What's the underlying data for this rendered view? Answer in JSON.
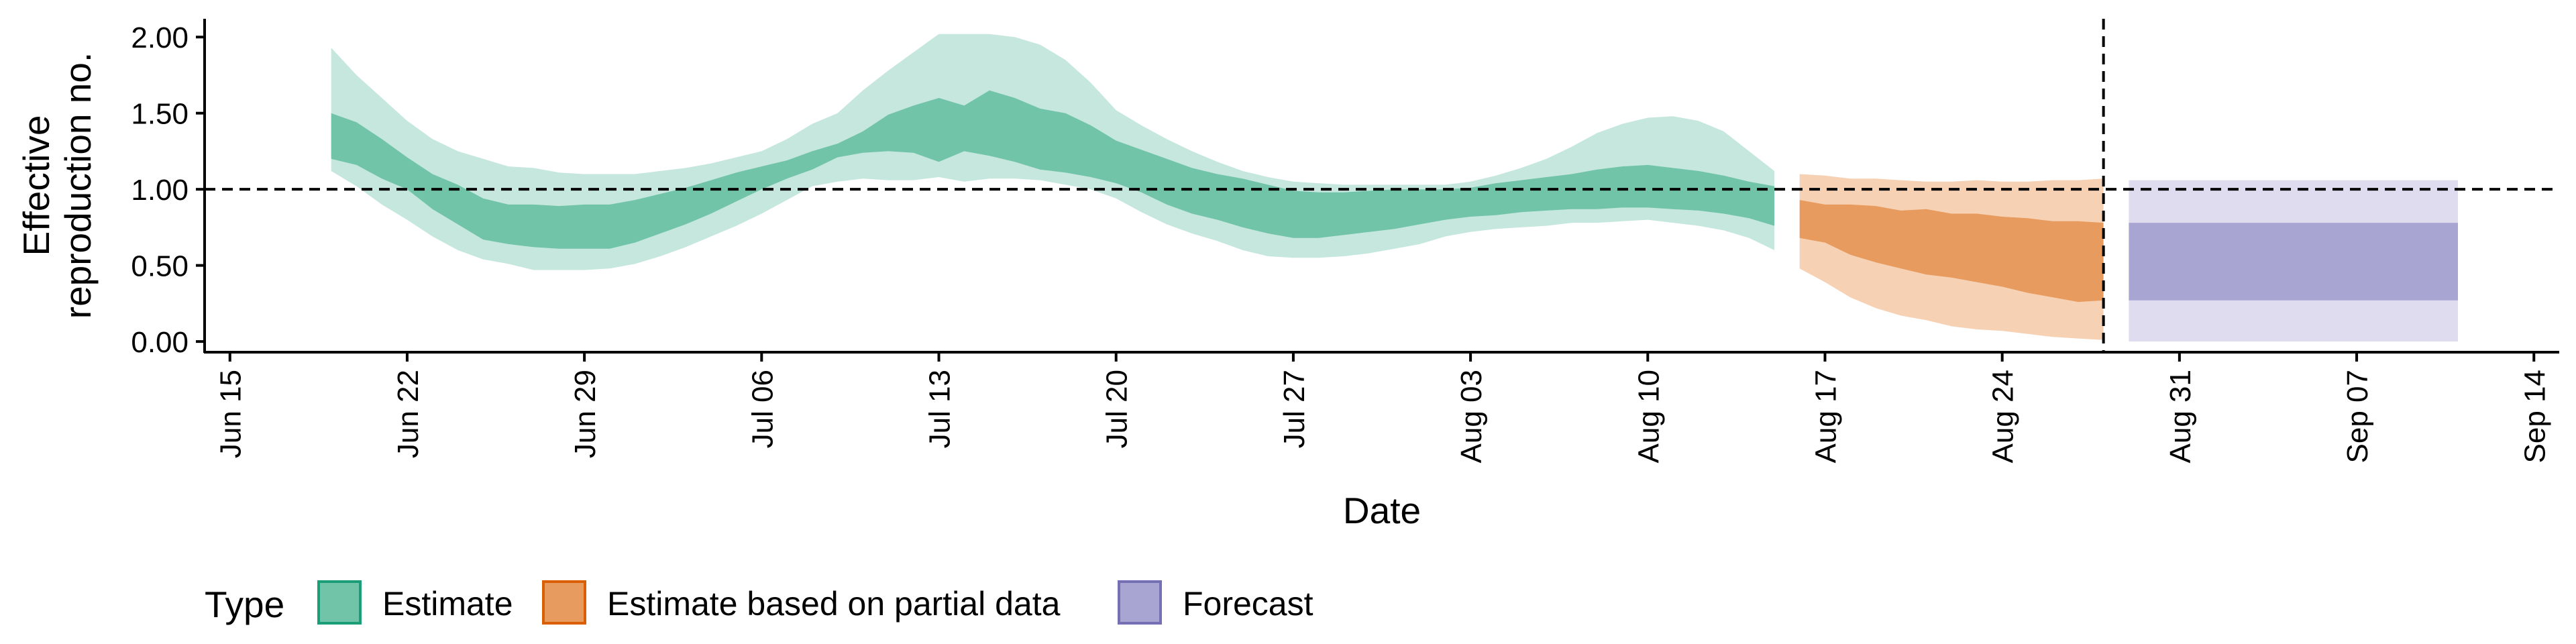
{
  "chart_data": {
    "type": "area",
    "xlabel": "Date",
    "ylabel_lines": [
      "Effective",
      "reproduction no."
    ],
    "ylim": [
      -0.07,
      2.12
    ],
    "yticks": [
      0,
      0.5,
      1,
      1.5,
      2
    ],
    "ytick_labels": [
      "0.00",
      "0.50",
      "1.00",
      "1.50",
      "2.00"
    ],
    "x_range": [
      "2020-06-14",
      "2020-09-15"
    ],
    "xticks": [
      "2020-06-15",
      "2020-06-22",
      "2020-06-29",
      "2020-07-06",
      "2020-07-13",
      "2020-07-20",
      "2020-07-27",
      "2020-08-03",
      "2020-08-10",
      "2020-08-17",
      "2020-08-24",
      "2020-08-31",
      "2020-09-07",
      "2020-09-14"
    ],
    "xtick_labels": [
      "Jun 15",
      "Jun 22",
      "Jun 29",
      "Jul 06",
      "Jul 13",
      "Jul 20",
      "Jul 27",
      "Aug 03",
      "Aug 10",
      "Aug 17",
      "Aug 24",
      "Aug 31",
      "Sep 07",
      "Sep 14"
    ],
    "reference_line_y": 1.0,
    "reference_line_date": "2020-08-28",
    "legend": {
      "title": "Type",
      "position": "bottom",
      "entries": [
        "Estimate",
        "Estimate based on partial data",
        "Forecast"
      ]
    },
    "series": [
      {
        "name": "Estimate",
        "color": "#1B9E77",
        "outer_color": "#C5E7DD",
        "inner_color": "#72C4A8",
        "x": [
          "2020-06-19",
          "2020-06-20",
          "2020-06-21",
          "2020-06-22",
          "2020-06-23",
          "2020-06-24",
          "2020-06-25",
          "2020-06-26",
          "2020-06-27",
          "2020-06-28",
          "2020-06-29",
          "2020-06-30",
          "2020-07-01",
          "2020-07-02",
          "2020-07-03",
          "2020-07-04",
          "2020-07-05",
          "2020-07-06",
          "2020-07-07",
          "2020-07-08",
          "2020-07-09",
          "2020-07-10",
          "2020-07-11",
          "2020-07-12",
          "2020-07-13",
          "2020-07-14",
          "2020-07-15",
          "2020-07-16",
          "2020-07-17",
          "2020-07-18",
          "2020-07-19",
          "2020-07-20",
          "2020-07-21",
          "2020-07-22",
          "2020-07-23",
          "2020-07-24",
          "2020-07-25",
          "2020-07-26",
          "2020-07-27",
          "2020-07-28",
          "2020-07-29",
          "2020-07-30",
          "2020-07-31",
          "2020-08-01",
          "2020-08-02",
          "2020-08-03",
          "2020-08-04",
          "2020-08-05",
          "2020-08-06",
          "2020-08-07",
          "2020-08-08",
          "2020-08-09",
          "2020-08-10",
          "2020-08-11",
          "2020-08-12",
          "2020-08-13",
          "2020-08-14",
          "2020-08-15"
        ],
        "lower_outer": [
          1.12,
          1.02,
          0.9,
          0.8,
          0.69,
          0.6,
          0.54,
          0.51,
          0.47,
          0.47,
          0.47,
          0.48,
          0.51,
          0.56,
          0.62,
          0.69,
          0.76,
          0.84,
          0.93,
          1.02,
          1.05,
          1.07,
          1.06,
          1.06,
          1.08,
          1.05,
          1.07,
          1.07,
          1.06,
          1.03,
          1.0,
          0.94,
          0.85,
          0.77,
          0.71,
          0.66,
          0.6,
          0.56,
          0.55,
          0.55,
          0.56,
          0.58,
          0.61,
          0.64,
          0.69,
          0.72,
          0.74,
          0.75,
          0.76,
          0.78,
          0.78,
          0.79,
          0.8,
          0.78,
          0.76,
          0.73,
          0.68,
          0.6
        ],
        "lower_inner": [
          1.2,
          1.16,
          1.07,
          1.0,
          0.87,
          0.77,
          0.67,
          0.64,
          0.62,
          0.61,
          0.61,
          0.61,
          0.65,
          0.71,
          0.77,
          0.84,
          0.92,
          1.0,
          1.07,
          1.13,
          1.21,
          1.24,
          1.25,
          1.24,
          1.18,
          1.25,
          1.22,
          1.18,
          1.13,
          1.11,
          1.08,
          1.04,
          0.98,
          0.9,
          0.84,
          0.8,
          0.75,
          0.71,
          0.68,
          0.68,
          0.7,
          0.72,
          0.74,
          0.77,
          0.8,
          0.82,
          0.83,
          0.85,
          0.86,
          0.87,
          0.87,
          0.88,
          0.88,
          0.87,
          0.86,
          0.84,
          0.81,
          0.76
        ],
        "upper_inner": [
          1.5,
          1.44,
          1.33,
          1.21,
          1.1,
          1.03,
          0.94,
          0.9,
          0.9,
          0.89,
          0.9,
          0.9,
          0.93,
          0.97,
          1.01,
          1.06,
          1.11,
          1.15,
          1.19,
          1.25,
          1.3,
          1.38,
          1.49,
          1.55,
          1.6,
          1.55,
          1.65,
          1.6,
          1.53,
          1.5,
          1.42,
          1.32,
          1.26,
          1.2,
          1.14,
          1.1,
          1.07,
          1.03,
          0.99,
          0.98,
          0.98,
          0.99,
          1.0,
          1.0,
          1.0,
          1.01,
          1.04,
          1.06,
          1.08,
          1.1,
          1.13,
          1.15,
          1.16,
          1.14,
          1.12,
          1.09,
          1.05,
          1.02
        ],
        "upper_outer": [
          1.93,
          1.75,
          1.6,
          1.45,
          1.33,
          1.25,
          1.2,
          1.15,
          1.14,
          1.11,
          1.1,
          1.1,
          1.1,
          1.12,
          1.14,
          1.17,
          1.21,
          1.25,
          1.33,
          1.43,
          1.5,
          1.65,
          1.78,
          1.9,
          2.02,
          2.02,
          2.02,
          2.0,
          1.95,
          1.85,
          1.7,
          1.52,
          1.42,
          1.33,
          1.25,
          1.18,
          1.12,
          1.08,
          1.05,
          1.04,
          1.03,
          1.03,
          1.03,
          1.03,
          1.03,
          1.05,
          1.09,
          1.14,
          1.2,
          1.28,
          1.37,
          1.43,
          1.47,
          1.48,
          1.45,
          1.38,
          1.25,
          1.12
        ]
      },
      {
        "name": "Estimate based on partial data",
        "color": "#D95F02",
        "outer_color": "#F6D1B3",
        "inner_color": "#E89B5F",
        "x": [
          "2020-08-16",
          "2020-08-17",
          "2020-08-18",
          "2020-08-19",
          "2020-08-20",
          "2020-08-21",
          "2020-08-22",
          "2020-08-23",
          "2020-08-24",
          "2020-08-25",
          "2020-08-26",
          "2020-08-27",
          "2020-08-28"
        ],
        "lower_outer": [
          0.48,
          0.39,
          0.29,
          0.22,
          0.17,
          0.14,
          0.1,
          0.08,
          0.07,
          0.05,
          0.03,
          0.02,
          0.01
        ],
        "lower_inner": [
          0.68,
          0.65,
          0.57,
          0.52,
          0.48,
          0.44,
          0.42,
          0.39,
          0.36,
          0.32,
          0.29,
          0.26,
          0.27
        ],
        "upper_inner": [
          0.93,
          0.9,
          0.9,
          0.89,
          0.86,
          0.87,
          0.84,
          0.84,
          0.82,
          0.81,
          0.79,
          0.79,
          0.78
        ],
        "upper_outer": [
          1.1,
          1.09,
          1.07,
          1.07,
          1.06,
          1.05,
          1.05,
          1.06,
          1.05,
          1.05,
          1.06,
          1.06,
          1.07
        ]
      },
      {
        "name": "Forecast",
        "color": "#7570B3",
        "outer_color": "#DEDCEE",
        "inner_color": "#A9A5D3",
        "x": [
          "2020-08-29",
          "2020-09-11"
        ],
        "lower_outer": [
          0.0,
          0.0
        ],
        "lower_inner": [
          0.27,
          0.27
        ],
        "upper_inner": [
          0.78,
          0.78
        ],
        "upper_outer": [
          1.06,
          1.06
        ]
      }
    ]
  }
}
